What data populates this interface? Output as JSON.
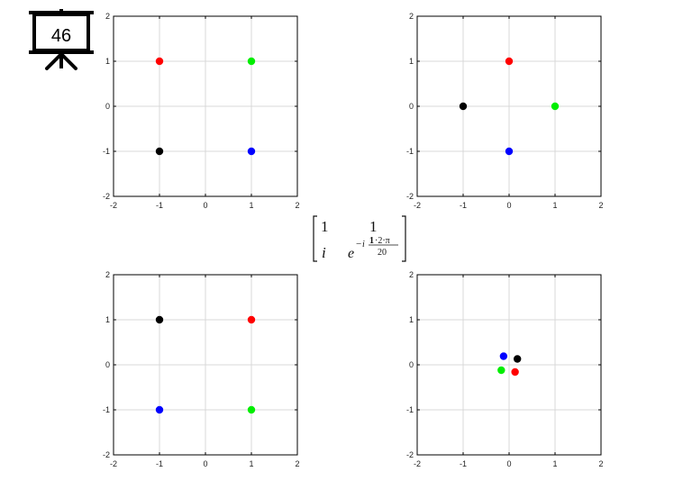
{
  "slide": {
    "number": "46"
  },
  "matrix": {
    "r1c1": "1",
    "r1c2": "1",
    "r2c1": "i",
    "r2c2_base": "e",
    "exp_sign": "−",
    "exp_i": "i",
    "exp_highlight": "1",
    "exp_numerator_rest": "·2·π",
    "exp_denominator": "20",
    "highlight_color": "#dd0000"
  },
  "chart_data": [
    {
      "type": "scatter",
      "title": "",
      "xlabel": "",
      "ylabel": "",
      "xlim": [
        -2,
        2
      ],
      "ylim": [
        -2,
        2
      ],
      "xticks": [
        "-2",
        "-1",
        "0",
        "1",
        "2"
      ],
      "yticks": [
        "-2",
        "-1",
        "0",
        "1",
        "2"
      ],
      "grid": true,
      "points": [
        {
          "x": -1,
          "y": 1,
          "color": "#ff0000"
        },
        {
          "x": 1,
          "y": 1,
          "color": "#00ee00"
        },
        {
          "x": -1,
          "y": -1,
          "color": "#000000"
        },
        {
          "x": 1,
          "y": -1,
          "color": "#0000ff"
        }
      ]
    },
    {
      "type": "scatter",
      "title": "",
      "xlabel": "",
      "ylabel": "",
      "xlim": [
        -2,
        2
      ],
      "ylim": [
        -2,
        2
      ],
      "xticks": [
        "-2",
        "-1",
        "0",
        "1",
        "2"
      ],
      "yticks": [
        "-2",
        "-1",
        "0",
        "1",
        "2"
      ],
      "grid": true,
      "points": [
        {
          "x": 0,
          "y": 1,
          "color": "#ff0000"
        },
        {
          "x": 1,
          "y": 0,
          "color": "#00ee00"
        },
        {
          "x": -1,
          "y": 0,
          "color": "#000000"
        },
        {
          "x": 0,
          "y": -1,
          "color": "#0000ff"
        }
      ]
    },
    {
      "type": "scatter",
      "title": "",
      "xlabel": "",
      "ylabel": "",
      "xlim": [
        -2,
        2
      ],
      "ylim": [
        -2,
        2
      ],
      "xticks": [
        "-2",
        "-1",
        "0",
        "1",
        "2"
      ],
      "yticks": [
        "-2",
        "-1",
        "0",
        "1",
        "2"
      ],
      "grid": true,
      "points": [
        {
          "x": 1,
          "y": 1,
          "color": "#ff0000"
        },
        {
          "x": 1,
          "y": -1,
          "color": "#00ee00"
        },
        {
          "x": -1,
          "y": 1,
          "color": "#000000"
        },
        {
          "x": -1,
          "y": -1,
          "color": "#0000ff"
        }
      ]
    },
    {
      "type": "scatter",
      "title": "",
      "xlabel": "",
      "ylabel": "",
      "xlim": [
        -2,
        2
      ],
      "ylim": [
        -2,
        2
      ],
      "xticks": [
        "-2",
        "-1",
        "0",
        "1",
        "2"
      ],
      "yticks": [
        "-2",
        "-1",
        "0",
        "1",
        "2"
      ],
      "grid": true,
      "points": [
        {
          "x": 0.13,
          "y": -0.16,
          "color": "#ff0000"
        },
        {
          "x": -0.17,
          "y": -0.12,
          "color": "#00ee00"
        },
        {
          "x": 0.18,
          "y": 0.13,
          "color": "#000000"
        },
        {
          "x": -0.12,
          "y": 0.19,
          "color": "#0000ff"
        }
      ]
    }
  ]
}
